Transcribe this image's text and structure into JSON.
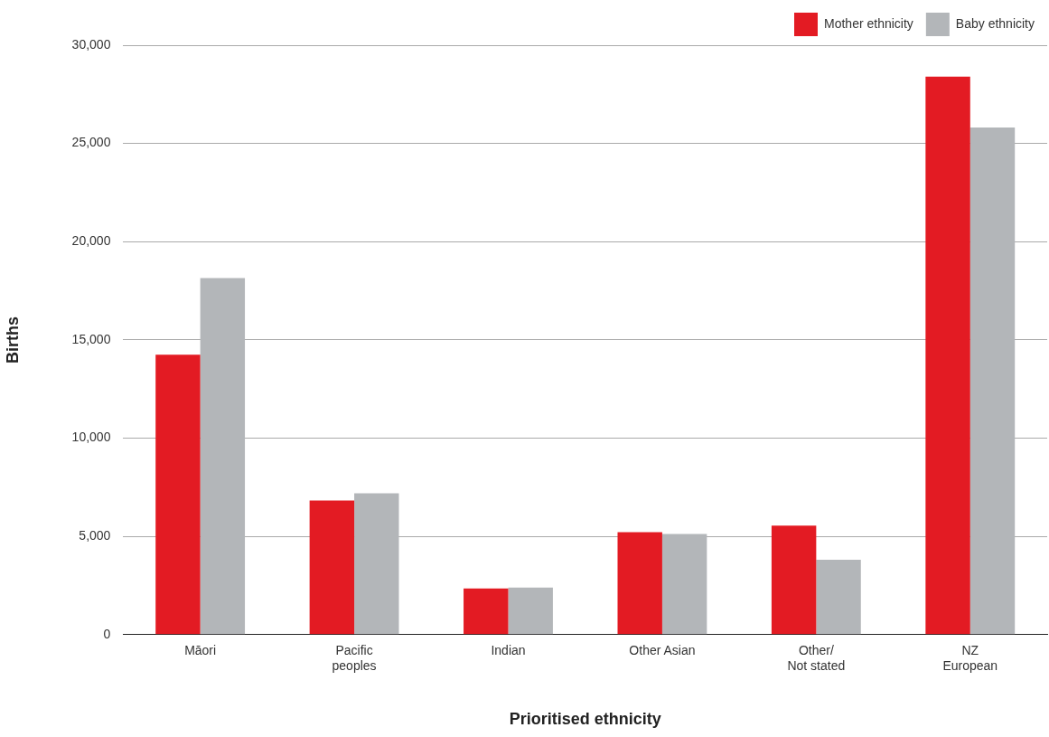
{
  "chart_data": {
    "type": "bar",
    "xlabel": "Prioritised ethnicity",
    "ylabel": "Births",
    "categories": [
      "Māori",
      "Pacific\npeoples",
      "Indian",
      "Other Asian",
      "Other/\nNot stated",
      "NZ\nEuropean"
    ],
    "series": [
      {
        "name": "Mother ethnicity",
        "color": "#e31b23",
        "values": [
          14250,
          6820,
          2350,
          5220,
          5550,
          28400
        ]
      },
      {
        "name": "Baby ethnicity",
        "color": "#b3b6b9",
        "values": [
          18150,
          7190,
          2400,
          5120,
          3810,
          25810
        ]
      }
    ],
    "ylim": [
      0,
      30000
    ],
    "yticks": [
      0,
      {
        "value": 5000,
        "label": "5,000"
      },
      {
        "value": 10000,
        "label": "10,000"
      },
      {
        "value": 15000,
        "label": "15,000"
      },
      {
        "value": 20000,
        "label": "20,000"
      },
      {
        "value": 25000,
        "label": "25,000"
      },
      {
        "value": 30000,
        "label": "30,000"
      }
    ],
    "grid": "y",
    "legend": "top right"
  }
}
